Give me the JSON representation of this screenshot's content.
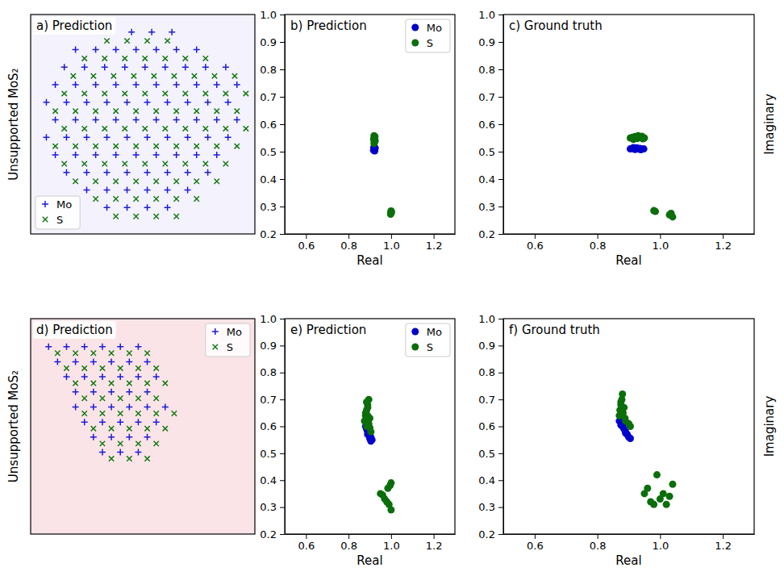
{
  "chart_data": [
    {
      "type": "scatter",
      "title": "a) Prediction",
      "y_label": "Unsupported MoS₂",
      "tick_labels": false,
      "legend": "lower left",
      "xlim": [
        0,
        100
      ],
      "ylim": [
        0,
        100
      ],
      "series": [
        {
          "name": "Mo",
          "color": "#1c1cd6",
          "marker": "plus",
          "x": [
            45,
            54,
            63,
            20,
            29,
            38,
            47,
            56,
            65,
            74,
            15,
            24,
            33,
            42,
            51,
            60,
            69,
            78,
            87,
            11,
            20,
            29,
            38,
            47,
            56,
            65,
            74,
            83,
            92,
            7,
            16,
            25,
            34,
            43,
            52,
            61,
            70,
            79,
            88,
            11,
            20,
            29,
            38,
            47,
            56,
            65,
            74,
            83,
            92,
            7,
            16,
            25,
            34,
            43,
            52,
            61,
            70,
            79,
            88,
            11,
            20,
            29,
            38,
            47,
            56,
            65,
            74,
            83,
            16,
            25,
            34,
            43,
            52,
            61,
            70,
            79,
            25,
            34,
            43,
            52,
            61,
            70,
            34,
            43,
            52,
            61
          ],
          "y": [
            92,
            92,
            92,
            84,
            84,
            84,
            84,
            84,
            84,
            84,
            76,
            76,
            76,
            76,
            76,
            76,
            76,
            76,
            76,
            68,
            68,
            68,
            68,
            68,
            68,
            68,
            68,
            68,
            68,
            60,
            60,
            60,
            60,
            60,
            60,
            60,
            60,
            60,
            60,
            52,
            52,
            52,
            52,
            52,
            52,
            52,
            52,
            52,
            52,
            44,
            44,
            44,
            44,
            44,
            44,
            44,
            44,
            44,
            44,
            36,
            36,
            36,
            36,
            36,
            36,
            36,
            36,
            36,
            28,
            28,
            28,
            28,
            28,
            28,
            28,
            28,
            20,
            20,
            20,
            20,
            20,
            20,
            12,
            12,
            12,
            12
          ]
        },
        {
          "name": "S",
          "color": "#137a13",
          "marker": "x",
          "x": [
            34,
            43,
            52,
            61,
            24,
            33,
            42,
            51,
            60,
            69,
            78,
            19,
            28,
            37,
            46,
            55,
            64,
            73,
            82,
            91,
            15,
            24,
            33,
            42,
            51,
            60,
            69,
            78,
            87,
            96,
            11,
            20,
            29,
            38,
            47,
            56,
            65,
            74,
            83,
            92,
            15,
            24,
            33,
            42,
            51,
            60,
            69,
            78,
            87,
            96,
            11,
            20,
            29,
            38,
            47,
            56,
            65,
            74,
            83,
            92,
            15,
            24,
            33,
            42,
            51,
            60,
            69,
            78,
            87,
            20,
            29,
            38,
            47,
            56,
            65,
            74,
            83,
            29,
            38,
            47,
            56,
            65,
            74,
            38,
            47,
            56,
            65
          ],
          "y": [
            88,
            88,
            88,
            88,
            80,
            80,
            80,
            80,
            80,
            80,
            80,
            72,
            72,
            72,
            72,
            72,
            72,
            72,
            72,
            72,
            64,
            64,
            64,
            64,
            64,
            64,
            64,
            64,
            64,
            64,
            56,
            56,
            56,
            56,
            56,
            56,
            56,
            56,
            56,
            56,
            48,
            48,
            48,
            48,
            48,
            48,
            48,
            48,
            48,
            48,
            40,
            40,
            40,
            40,
            40,
            40,
            40,
            40,
            40,
            40,
            32,
            32,
            32,
            32,
            32,
            32,
            32,
            32,
            32,
            24,
            24,
            24,
            24,
            24,
            24,
            24,
            24,
            16,
            16,
            16,
            16,
            16,
            16,
            8,
            8,
            8,
            8
          ]
        }
      ]
    },
    {
      "type": "scatter",
      "title": "b) Prediction",
      "x_label": "Real",
      "legend": "upper right",
      "xlim": [
        0.5,
        1.3
      ],
      "ylim": [
        0.2,
        1.0
      ],
      "xticks": [
        0.6,
        0.8,
        {
          "value": 1,
          "label": "1.0"
        },
        1.2
      ],
      "yticks": [
        0.2,
        0.3,
        0.4,
        0.5,
        0.6,
        0.7,
        0.8,
        0.9,
        {
          "value": 1,
          "label": "1.0"
        }
      ],
      "series": [
        {
          "name": "Mo",
          "color": "#0000cd",
          "marker": "circle",
          "x": [
            0.918,
            0.92,
            0.922,
            0.925,
            0.919,
            0.923,
            0.921
          ],
          "y": [
            0.505,
            0.51,
            0.508,
            0.513,
            0.515,
            0.503,
            0.518
          ]
        },
        {
          "name": "S",
          "color": "#0b6e0b",
          "marker": "circle",
          "x": [
            0.92,
            0.922,
            0.925,
            0.918,
            0.921,
            0.924,
            0.92,
            0.998,
            1.0,
            1.002,
            1.0,
            0.999
          ],
          "y": [
            0.53,
            0.535,
            0.54,
            0.545,
            0.55,
            0.555,
            0.558,
            0.272,
            0.276,
            0.28,
            0.284,
            0.278
          ]
        }
      ]
    },
    {
      "type": "scatter",
      "title": "c) Ground truth",
      "x_label": "Real",
      "y_label": "Imaginary",
      "xlim": [
        0.5,
        1.3
      ],
      "ylim": [
        0.2,
        1.0
      ],
      "xticks": [
        0.6,
        0.8,
        {
          "value": 1,
          "label": "1.0"
        },
        1.2
      ],
      "yticks": [
        0.2,
        0.3,
        0.4,
        0.5,
        0.6,
        0.7,
        0.8,
        0.9,
        {
          "value": 1,
          "label": "1.0"
        }
      ],
      "series": [
        {
          "name": "Mo",
          "color": "#0000cd",
          "marker": "circle",
          "x": [
            0.905,
            0.912,
            0.92,
            0.928,
            0.935,
            0.942,
            0.948,
            0.915,
            0.925,
            0.938
          ],
          "y": [
            0.51,
            0.512,
            0.508,
            0.51,
            0.512,
            0.509,
            0.51,
            0.515,
            0.514,
            0.507
          ]
        },
        {
          "name": "S",
          "color": "#0b6e0b",
          "marker": "circle",
          "x": [
            0.905,
            0.912,
            0.92,
            0.928,
            0.935,
            0.942,
            0.95,
            0.915,
            0.93,
            0.945,
            0.98,
            0.985,
            1.03,
            1.035,
            1.04
          ],
          "y": [
            0.55,
            0.552,
            0.555,
            0.548,
            0.553,
            0.556,
            0.55,
            0.545,
            0.558,
            0.547,
            0.285,
            0.282,
            0.27,
            0.275,
            0.262
          ]
        }
      ]
    },
    {
      "type": "scatter",
      "title": "d) Prediction",
      "y_label": "Unsupported MoS₂",
      "tick_labels": false,
      "legend": "upper right",
      "xlim": [
        0,
        100
      ],
      "ylim": [
        0,
        100
      ],
      "series": [
        {
          "name": "Mo",
          "color": "#1c1cd6",
          "marker": "plus",
          "x": [
            8,
            16,
            24,
            32,
            40,
            48,
            12,
            20,
            28,
            36,
            44,
            52,
            16,
            24,
            32,
            40,
            48,
            56,
            20,
            28,
            36,
            44,
            52,
            20,
            28,
            36,
            44,
            52,
            60,
            24,
            32,
            40,
            48,
            56,
            28,
            36,
            44,
            52,
            32,
            40,
            48
          ],
          "y": [
            87,
            87,
            87,
            87,
            87,
            87,
            80,
            80,
            80,
            80,
            80,
            80,
            73,
            73,
            73,
            73,
            73,
            73,
            66,
            66,
            66,
            66,
            66,
            59,
            59,
            59,
            59,
            59,
            59,
            52,
            52,
            52,
            52,
            52,
            45,
            45,
            45,
            45,
            38,
            38,
            38
          ]
        },
        {
          "name": "S",
          "color": "#137a13",
          "marker": "x",
          "x": [
            12,
            20,
            28,
            36,
            44,
            52,
            16,
            24,
            32,
            40,
            48,
            56,
            20,
            28,
            36,
            44,
            52,
            60,
            24,
            32,
            40,
            48,
            56,
            24,
            32,
            40,
            48,
            56,
            64,
            28,
            36,
            44,
            52,
            60,
            32,
            40,
            48,
            56,
            36,
            44,
            52
          ],
          "y": [
            84,
            84,
            84,
            84,
            84,
            84,
            77,
            77,
            77,
            77,
            77,
            77,
            70,
            70,
            70,
            70,
            70,
            70,
            63,
            63,
            63,
            63,
            63,
            56,
            56,
            56,
            56,
            56,
            56,
            49,
            49,
            49,
            49,
            49,
            42,
            42,
            42,
            42,
            35,
            35,
            35
          ]
        }
      ]
    },
    {
      "type": "scatter",
      "title": "e) Prediction",
      "x_label": "Real",
      "legend": "upper right",
      "xlim": [
        0.5,
        1.3
      ],
      "ylim": [
        0.2,
        1.0
      ],
      "xticks": [
        0.6,
        0.8,
        {
          "value": 1,
          "label": "1.0"
        },
        1.2
      ],
      "yticks": [
        0.2,
        0.3,
        0.4,
        0.5,
        0.6,
        0.7,
        0.8,
        0.9,
        {
          "value": 1,
          "label": "1.0"
        }
      ],
      "series": [
        {
          "name": "Mo",
          "color": "#0000cd",
          "marker": "circle",
          "x": [
            0.88,
            0.885,
            0.89,
            0.895,
            0.9,
            0.905,
            0.91,
            0.89,
            0.895,
            0.905,
            0.885,
            0.9
          ],
          "y": [
            0.6,
            0.59,
            0.58,
            0.575,
            0.565,
            0.56,
            0.55,
            0.57,
            0.585,
            0.545,
            0.605,
            0.555
          ]
        },
        {
          "name": "S",
          "color": "#0b6e0b",
          "marker": "circle",
          "x": [
            0.875,
            0.88,
            0.885,
            0.89,
            0.895,
            0.9,
            0.88,
            0.885,
            0.89,
            0.895,
            0.9,
            0.905,
            0.885,
            0.89,
            0.95,
            0.96,
            0.97,
            0.98,
            0.985,
            0.99,
            1.0,
            0.995,
            1.0
          ],
          "y": [
            0.62,
            0.64,
            0.66,
            0.68,
            0.7,
            0.63,
            0.65,
            0.6,
            0.67,
            0.61,
            0.595,
            0.58,
            0.69,
            0.64,
            0.35,
            0.345,
            0.33,
            0.32,
            0.37,
            0.31,
            0.29,
            0.38,
            0.39
          ]
        }
      ]
    },
    {
      "type": "scatter",
      "title": "f) Ground truth",
      "x_label": "Real",
      "y_label": "Imaginary",
      "xlim": [
        0.5,
        1.3
      ],
      "ylim": [
        0.2,
        1.0
      ],
      "xticks": [
        0.6,
        0.8,
        {
          "value": 1,
          "label": "1.0"
        },
        1.2
      ],
      "yticks": [
        0.2,
        0.3,
        0.4,
        0.5,
        0.6,
        0.7,
        0.8,
        0.9,
        {
          "value": 1,
          "label": "1.0"
        }
      ],
      "series": [
        {
          "name": "Mo",
          "color": "#0000cd",
          "marker": "circle",
          "x": [
            0.87,
            0.875,
            0.88,
            0.885,
            0.89,
            0.895,
            0.9,
            0.905,
            0.88,
            0.89
          ],
          "y": [
            0.62,
            0.605,
            0.6,
            0.59,
            0.58,
            0.57,
            0.56,
            0.555,
            0.61,
            0.575
          ]
        },
        {
          "name": "S",
          "color": "#0b6e0b",
          "marker": "circle",
          "x": [
            0.87,
            0.872,
            0.875,
            0.878,
            0.88,
            0.882,
            0.885,
            0.888,
            0.89,
            0.9,
            0.905,
            0.875,
            0.95,
            0.96,
            0.97,
            0.98,
            0.99,
            1.0,
            1.01,
            1.02,
            1.03,
            1.04
          ],
          "y": [
            0.64,
            0.66,
            0.68,
            0.7,
            0.72,
            0.65,
            0.67,
            0.63,
            0.62,
            0.61,
            0.6,
            0.69,
            0.35,
            0.37,
            0.32,
            0.31,
            0.42,
            0.33,
            0.35,
            0.31,
            0.34,
            0.385
          ]
        }
      ]
    }
  ]
}
